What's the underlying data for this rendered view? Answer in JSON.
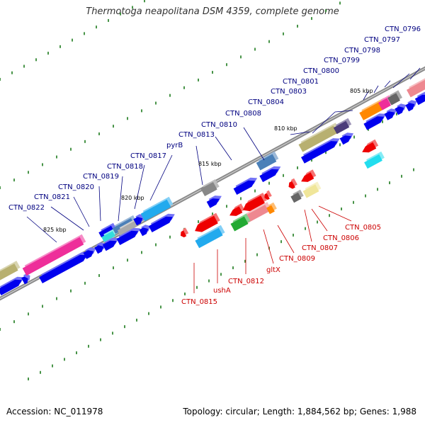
{
  "title": "Thermotoga neapolitana DSM 4359, complete genome",
  "footer": {
    "accession": "Accession: NC_011978",
    "topology": "Topology: circular; Length: 1,884,562 bp; Genes: 1,988"
  },
  "colors": {
    "backbone": "#8a8a8a",
    "forward_label": "#000080",
    "reverse_label": "#cc0000",
    "forward_gene": "#0000ee",
    "reverse_gene": "#ee0000",
    "tick": "#1a7a1a"
  },
  "kbp_markers": [
    "805 kbp",
    "810 kbp",
    "815 kbp",
    "820 kbp",
    "825 kbp"
  ],
  "forward_labels": [
    "CTN_0796",
    "CTN_0797",
    "CTN_0798",
    "CTN_0799",
    "CTN_0800",
    "CTN_0801",
    "CTN_0803",
    "CTN_0804",
    "CTN_0808",
    "CTN_0810",
    "CTN_0813",
    "pyrB",
    "CTN_0817",
    "CTN_0818",
    "CTN_0819",
    "CTN_0820",
    "CTN_0821",
    "CTN_0822"
  ],
  "reverse_labels": [
    "CTN_0805",
    "CTN_0806",
    "CTN_0807",
    "CTN_0809",
    "gltX",
    "CTN_0812",
    "ushA",
    "CTN_0815"
  ]
}
